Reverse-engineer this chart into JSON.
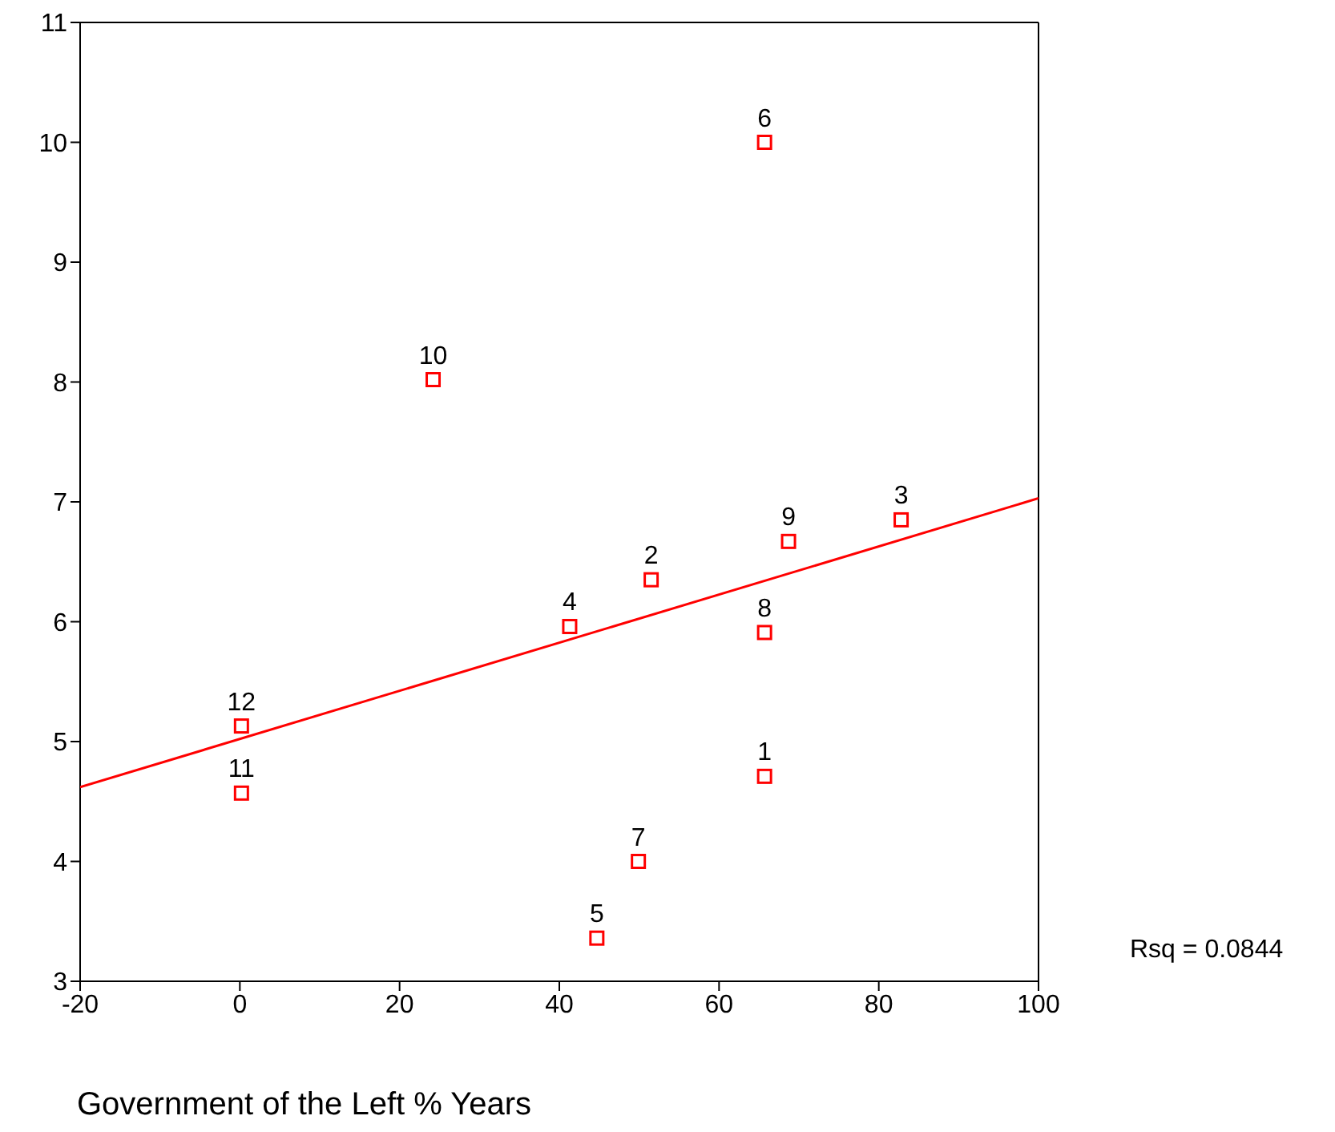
{
  "chart_data": {
    "type": "scatter",
    "xlabel": "Government of the Left % Years",
    "xlim": [
      -20,
      100
    ],
    "xticks": [
      -20,
      0,
      20,
      40,
      60,
      80,
      100
    ],
    "ylim": [
      3,
      11
    ],
    "yticks": [
      3,
      4,
      5,
      6,
      7,
      8,
      9,
      10,
      11
    ],
    "marker": "square",
    "series": [
      {
        "color": "#ff0000",
        "x": [
          65.7,
          51.5,
          82.8,
          41.3,
          44.7,
          65.7,
          49.9,
          65.7,
          68.7,
          24.2,
          0.2,
          0.2
        ],
        "values": [
          4.71,
          6.35,
          6.85,
          5.96,
          3.36,
          10.0,
          4.0,
          5.91,
          6.67,
          8.02,
          4.57,
          5.13
        ]
      },
      {
        "type": "line",
        "color": "#ff0000",
        "x": [
          -20,
          100
        ],
        "values": [
          4.62,
          7.03
        ],
        "marker": "none"
      }
    ],
    "annotations": [
      {
        "text": "1",
        "x": 65.7,
        "y": 4.71
      },
      {
        "text": "2",
        "x": 51.5,
        "y": 6.35
      },
      {
        "text": "3",
        "x": 82.8,
        "y": 6.85
      },
      {
        "text": "4",
        "x": 41.3,
        "y": 5.96
      },
      {
        "text": "5",
        "x": 44.7,
        "y": 3.36
      },
      {
        "text": "6",
        "x": 65.7,
        "y": 10.0
      },
      {
        "text": "7",
        "x": 49.9,
        "y": 4.0
      },
      {
        "text": "8",
        "x": 65.7,
        "y": 5.91
      },
      {
        "text": "9",
        "x": 68.7,
        "y": 6.67
      },
      {
        "text": "10",
        "x": 24.2,
        "y": 8.02
      },
      {
        "text": "11",
        "x": 0.2,
        "y": 4.57
      },
      {
        "text": "12",
        "x": 0.2,
        "y": 5.13
      },
      "Rsq = 0.0844"
    ]
  }
}
